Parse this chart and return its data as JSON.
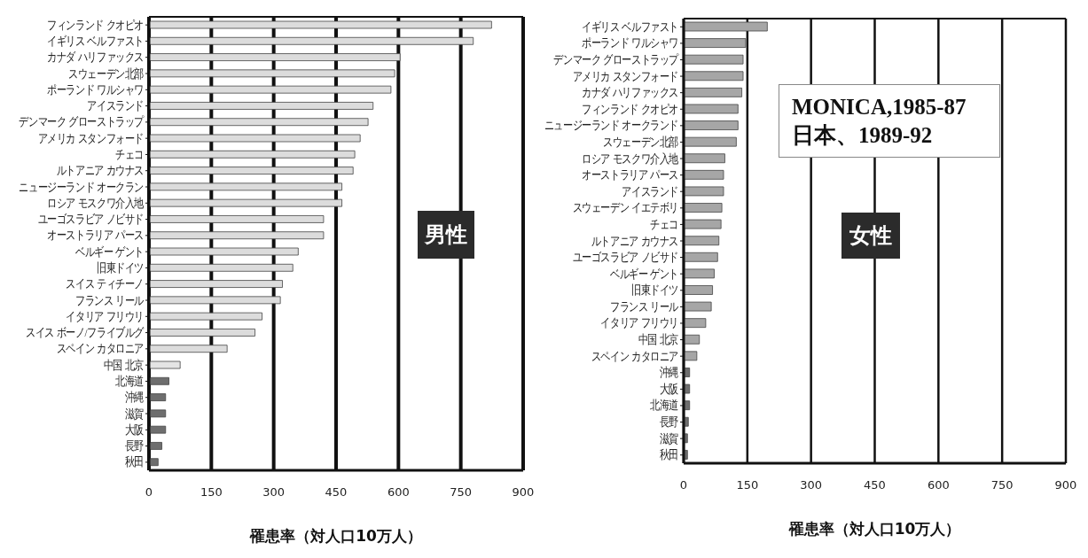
{
  "chart_data": [
    {
      "type": "bar",
      "orientation": "horizontal",
      "xlabel": "罹患率（対人口10万人）",
      "annotations": [
        "男性"
      ],
      "categories": [
        "フィンランド クオピオ",
        "イギリス ベルファスト",
        "カナダ ハリファックス",
        "スウェーデン北部",
        "ポーランド ワルシャワ",
        "アイスランド",
        "デンマーク グローストラップ",
        "アメリカ スタンフォード",
        "チェコ",
        "ルトアニア カウナス",
        "ニュージーランド オークラン",
        "ロシア モスクワ介入地",
        "ユーゴスラビア ノビサド",
        "オーストラリア パース",
        "ベルギー ゲント",
        "旧東ドイツ",
        "スイス ティチーノ",
        "フランス リール",
        "イタリア フリウリ",
        "スイス ボーノ/フライブルグ",
        "スペイン カタロニア",
        "中国 北京",
        "北海道",
        "沖縄",
        "滋賀",
        "大阪",
        "長野",
        "秋田"
      ],
      "values": [
        824,
        780,
        604,
        591,
        582,
        539,
        527,
        508,
        495,
        491,
        464,
        464,
        420,
        420,
        359,
        346,
        321,
        316,
        272,
        255,
        188,
        75,
        48,
        40,
        40,
        40,
        31,
        22
      ],
      "colors": [
        "#dcdcdc",
        "#dcdcdc",
        "#dcdcdc",
        "#dcdcdc",
        "#dcdcdc",
        "#dcdcdc",
        "#dcdcdc",
        "#dcdcdc",
        "#dcdcdc",
        "#dcdcdc",
        "#dcdcdc",
        "#dcdcdc",
        "#dcdcdc",
        "#dcdcdc",
        "#dcdcdc",
        "#dcdcdc",
        "#dcdcdc",
        "#dcdcdc",
        "#dcdcdc",
        "#dcdcdc",
        "#dcdcdc",
        "#e4e4e4",
        "#6e6e6e",
        "#6e6e6e",
        "#6e6e6e",
        "#6e6e6e",
        "#6e6e6e",
        "#6e6e6e"
      ],
      "xlim": [
        0,
        900
      ],
      "xticks": [
        0,
        150,
        300,
        450,
        600,
        750,
        900
      ],
      "grid": "x",
      "legend": false
    },
    {
      "type": "bar",
      "orientation": "horizontal",
      "xlabel": "罹患率（対人口10万人）",
      "annotations": [
        "MONICA,1985-87\n日本、1989-92",
        "女性"
      ],
      "categories": [
        "イギリス ベルファスト",
        "ポーランド ワルシャワ",
        "デンマーク グローストラップ",
        "アメリカ スタンフォード",
        "カナダ ハリファックス",
        "フィンランド クオピオ",
        "ニュージーランド オークランド",
        "スウェーデン北部",
        "ロシア モスクワ介入地",
        "オーストラリア パース",
        "アイスランド",
        "スウェーデン イエテボリ",
        "チェコ",
        "ルトアニア カウナス",
        "ユーゴスラビア ノビサド",
        "ベルギー ゲント",
        "旧東ドイツ",
        "フランス リール",
        "イタリア フリウリ",
        "中国 北京",
        "スペイン カタロニア",
        "沖縄",
        "大阪",
        "北海道",
        "長野",
        "滋賀",
        "秋田"
      ],
      "values": [
        197,
        146,
        140,
        140,
        137,
        128,
        128,
        124,
        97,
        94,
        94,
        90,
        88,
        83,
        80,
        72,
        68,
        65,
        52,
        37,
        31,
        14,
        14,
        14,
        11,
        9,
        9
      ],
      "colors": [
        "#a6a6a6",
        "#a6a6a6",
        "#a6a6a6",
        "#a6a6a6",
        "#a6a6a6",
        "#a6a6a6",
        "#a6a6a6",
        "#a6a6a6",
        "#a6a6a6",
        "#a6a6a6",
        "#a6a6a6",
        "#a6a6a6",
        "#a6a6a6",
        "#a6a6a6",
        "#a6a6a6",
        "#a6a6a6",
        "#a6a6a6",
        "#a6a6a6",
        "#a6a6a6",
        "#a6a6a6",
        "#a6a6a6",
        "#6e6e6e",
        "#6e6e6e",
        "#6e6e6e",
        "#6e6e6e",
        "#6e6e6e",
        "#6e6e6e"
      ],
      "xlim": [
        0,
        900
      ],
      "xticks": [
        0,
        150,
        300,
        450,
        600,
        750,
        900
      ],
      "grid": "x",
      "legend": false
    }
  ]
}
